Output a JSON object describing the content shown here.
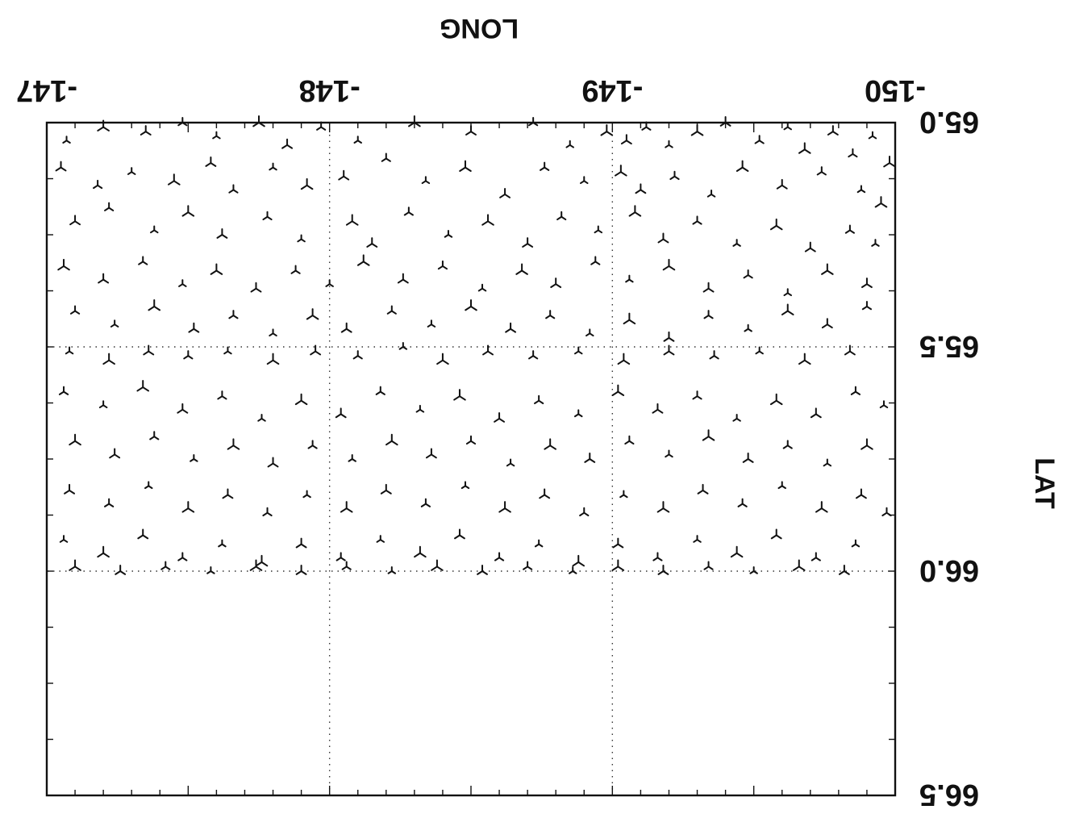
{
  "chart_data": {
    "type": "scatter",
    "marker": "tripod-symbol",
    "xlabel": "LONG",
    "ylabel": "LAT",
    "xlim": [
      -147,
      -150
    ],
    "ylim": [
      65.0,
      66.5
    ],
    "x_ticks": [
      {
        "value": -147,
        "label": "-147"
      },
      {
        "value": -148,
        "label": "-148"
      },
      {
        "value": -149,
        "label": "-149"
      },
      {
        "value": -150,
        "label": "-150"
      }
    ],
    "y_ticks": [
      {
        "value": 65.0,
        "label": "65.0"
      },
      {
        "value": 65.5,
        "label": "65.5"
      },
      {
        "value": 66.0,
        "label": "66.0"
      },
      {
        "value": 66.5,
        "label": "66.5"
      }
    ],
    "grid": true,
    "grid_style": "dotted",
    "orientation": "image rotated 180 degrees",
    "point_density_note": "points cover lat 65.0 to 66.0; lat 66.0 to 66.5 empty",
    "points": [
      {
        "x": -147.07,
        "y": 65.04
      },
      {
        "x": -147.2,
        "y": 65.01
      },
      {
        "x": -147.35,
        "y": 65.02
      },
      {
        "x": -147.48,
        "y": 65.0
      },
      {
        "x": -147.6,
        "y": 65.03
      },
      {
        "x": -147.75,
        "y": 65.0
      },
      {
        "x": -147.85,
        "y": 65.05
      },
      {
        "x": -147.97,
        "y": 65.01
      },
      {
        "x": -148.1,
        "y": 65.04
      },
      {
        "x": -148.3,
        "y": 65.0
      },
      {
        "x": -148.5,
        "y": 65.02
      },
      {
        "x": -148.72,
        "y": 65.0
      },
      {
        "x": -148.85,
        "y": 65.05
      },
      {
        "x": -148.98,
        "y": 65.02
      },
      {
        "x": -149.05,
        "y": 65.04
      },
      {
        "x": -149.12,
        "y": 65.01
      },
      {
        "x": -149.2,
        "y": 65.05
      },
      {
        "x": -149.3,
        "y": 65.02
      },
      {
        "x": -149.4,
        "y": 65.0
      },
      {
        "x": -149.52,
        "y": 65.04
      },
      {
        "x": -149.62,
        "y": 65.01
      },
      {
        "x": -149.68,
        "y": 65.06
      },
      {
        "x": -149.78,
        "y": 65.02
      },
      {
        "x": -149.85,
        "y": 65.07
      },
      {
        "x": -149.92,
        "y": 65.03
      },
      {
        "x": -149.98,
        "y": 65.09
      },
      {
        "x": -147.05,
        "y": 65.1
      },
      {
        "x": -147.18,
        "y": 65.14
      },
      {
        "x": -147.3,
        "y": 65.11
      },
      {
        "x": -147.45,
        "y": 65.13
      },
      {
        "x": -147.58,
        "y": 65.09
      },
      {
        "x": -147.66,
        "y": 65.15
      },
      {
        "x": -147.8,
        "y": 65.1
      },
      {
        "x": -147.92,
        "y": 65.14
      },
      {
        "x": -148.05,
        "y": 65.12
      },
      {
        "x": -148.2,
        "y": 65.08
      },
      {
        "x": -148.34,
        "y": 65.13
      },
      {
        "x": -148.48,
        "y": 65.1
      },
      {
        "x": -148.62,
        "y": 65.16
      },
      {
        "x": -148.76,
        "y": 65.1
      },
      {
        "x": -148.9,
        "y": 65.13
      },
      {
        "x": -149.03,
        "y": 65.11
      },
      {
        "x": -149.1,
        "y": 65.15
      },
      {
        "x": -149.22,
        "y": 65.12
      },
      {
        "x": -149.35,
        "y": 65.16
      },
      {
        "x": -149.46,
        "y": 65.1
      },
      {
        "x": -149.6,
        "y": 65.14
      },
      {
        "x": -149.74,
        "y": 65.11
      },
      {
        "x": -149.88,
        "y": 65.15
      },
      {
        "x": -149.95,
        "y": 65.18
      },
      {
        "x": -147.1,
        "y": 65.22
      },
      {
        "x": -147.22,
        "y": 65.19
      },
      {
        "x": -147.38,
        "y": 65.24
      },
      {
        "x": -147.5,
        "y": 65.2
      },
      {
        "x": -147.62,
        "y": 65.25
      },
      {
        "x": -147.78,
        "y": 65.21
      },
      {
        "x": -147.9,
        "y": 65.26
      },
      {
        "x": -148.08,
        "y": 65.22
      },
      {
        "x": -148.15,
        "y": 65.27
      },
      {
        "x": -148.28,
        "y": 65.2
      },
      {
        "x": -148.42,
        "y": 65.25
      },
      {
        "x": -148.56,
        "y": 65.22
      },
      {
        "x": -148.7,
        "y": 65.27
      },
      {
        "x": -148.82,
        "y": 65.21
      },
      {
        "x": -148.95,
        "y": 65.24
      },
      {
        "x": -149.08,
        "y": 65.2
      },
      {
        "x": -149.18,
        "y": 65.26
      },
      {
        "x": -149.3,
        "y": 65.22
      },
      {
        "x": -149.44,
        "y": 65.27
      },
      {
        "x": -149.58,
        "y": 65.23
      },
      {
        "x": -149.7,
        "y": 65.28
      },
      {
        "x": -149.84,
        "y": 65.24
      },
      {
        "x": -149.93,
        "y": 65.27
      },
      {
        "x": -147.06,
        "y": 65.32
      },
      {
        "x": -147.2,
        "y": 65.35
      },
      {
        "x": -147.34,
        "y": 65.31
      },
      {
        "x": -147.48,
        "y": 65.36
      },
      {
        "x": -147.6,
        "y": 65.33
      },
      {
        "x": -147.74,
        "y": 65.37
      },
      {
        "x": -147.88,
        "y": 65.33
      },
      {
        "x": -148.0,
        "y": 65.36
      },
      {
        "x": -148.12,
        "y": 65.31
      },
      {
        "x": -148.26,
        "y": 65.35
      },
      {
        "x": -148.4,
        "y": 65.32
      },
      {
        "x": -148.54,
        "y": 65.37
      },
      {
        "x": -148.68,
        "y": 65.33
      },
      {
        "x": -148.8,
        "y": 65.36
      },
      {
        "x": -148.94,
        "y": 65.31
      },
      {
        "x": -149.06,
        "y": 65.35
      },
      {
        "x": -149.2,
        "y": 65.32
      },
      {
        "x": -149.34,
        "y": 65.37
      },
      {
        "x": -149.48,
        "y": 65.34
      },
      {
        "x": -149.62,
        "y": 65.38
      },
      {
        "x": -149.76,
        "y": 65.33
      },
      {
        "x": -149.9,
        "y": 65.36
      },
      {
        "x": -147.1,
        "y": 65.42
      },
      {
        "x": -147.24,
        "y": 65.45
      },
      {
        "x": -147.38,
        "y": 65.41
      },
      {
        "x": -147.52,
        "y": 65.46
      },
      {
        "x": -147.66,
        "y": 65.43
      },
      {
        "x": -147.8,
        "y": 65.47
      },
      {
        "x": -147.94,
        "y": 65.43
      },
      {
        "x": -148.06,
        "y": 65.46
      },
      {
        "x": -148.22,
        "y": 65.42
      },
      {
        "x": -148.36,
        "y": 65.45
      },
      {
        "x": -148.5,
        "y": 65.41
      },
      {
        "x": -148.64,
        "y": 65.46
      },
      {
        "x": -148.78,
        "y": 65.43
      },
      {
        "x": -148.92,
        "y": 65.47
      },
      {
        "x": -149.06,
        "y": 65.44
      },
      {
        "x": -149.2,
        "y": 65.48
      },
      {
        "x": -149.34,
        "y": 65.43
      },
      {
        "x": -149.48,
        "y": 65.46
      },
      {
        "x": -149.62,
        "y": 65.42
      },
      {
        "x": -149.76,
        "y": 65.45
      },
      {
        "x": -149.9,
        "y": 65.41
      },
      {
        "x": -147.08,
        "y": 65.51
      },
      {
        "x": -147.22,
        "y": 65.53
      },
      {
        "x": -147.36,
        "y": 65.51
      },
      {
        "x": -147.5,
        "y": 65.52
      },
      {
        "x": -147.64,
        "y": 65.51
      },
      {
        "x": -147.8,
        "y": 65.53
      },
      {
        "x": -147.95,
        "y": 65.51
      },
      {
        "x": -148.1,
        "y": 65.52
      },
      {
        "x": -148.26,
        "y": 65.5
      },
      {
        "x": -148.4,
        "y": 65.53
      },
      {
        "x": -148.56,
        "y": 65.51
      },
      {
        "x": -148.72,
        "y": 65.52
      },
      {
        "x": -148.88,
        "y": 65.51
      },
      {
        "x": -149.04,
        "y": 65.53
      },
      {
        "x": -149.2,
        "y": 65.51
      },
      {
        "x": -149.36,
        "y": 65.52
      },
      {
        "x": -149.52,
        "y": 65.51
      },
      {
        "x": -149.68,
        "y": 65.53
      },
      {
        "x": -149.84,
        "y": 65.51
      },
      {
        "x": -147.06,
        "y": 65.6
      },
      {
        "x": -147.2,
        "y": 65.63
      },
      {
        "x": -147.34,
        "y": 65.59
      },
      {
        "x": -147.48,
        "y": 65.64
      },
      {
        "x": -147.62,
        "y": 65.61
      },
      {
        "x": -147.76,
        "y": 65.66
      },
      {
        "x": -147.9,
        "y": 65.62
      },
      {
        "x": -148.04,
        "y": 65.65
      },
      {
        "x": -148.18,
        "y": 65.6
      },
      {
        "x": -148.32,
        "y": 65.64
      },
      {
        "x": -148.46,
        "y": 65.61
      },
      {
        "x": -148.6,
        "y": 65.66
      },
      {
        "x": -148.74,
        "y": 65.62
      },
      {
        "x": -148.88,
        "y": 65.65
      },
      {
        "x": -149.02,
        "y": 65.6
      },
      {
        "x": -149.16,
        "y": 65.64
      },
      {
        "x": -149.3,
        "y": 65.61
      },
      {
        "x": -149.44,
        "y": 65.66
      },
      {
        "x": -149.58,
        "y": 65.62
      },
      {
        "x": -149.72,
        "y": 65.65
      },
      {
        "x": -149.86,
        "y": 65.6
      },
      {
        "x": -149.96,
        "y": 65.63
      },
      {
        "x": -147.1,
        "y": 65.71
      },
      {
        "x": -147.24,
        "y": 65.74
      },
      {
        "x": -147.38,
        "y": 65.7
      },
      {
        "x": -147.52,
        "y": 65.75
      },
      {
        "x": -147.66,
        "y": 65.72
      },
      {
        "x": -147.8,
        "y": 65.76
      },
      {
        "x": -147.94,
        "y": 65.72
      },
      {
        "x": -148.08,
        "y": 65.75
      },
      {
        "x": -148.22,
        "y": 65.71
      },
      {
        "x": -148.36,
        "y": 65.74
      },
      {
        "x": -148.5,
        "y": 65.71
      },
      {
        "x": -148.64,
        "y": 65.76
      },
      {
        "x": -148.78,
        "y": 65.72
      },
      {
        "x": -148.92,
        "y": 65.75
      },
      {
        "x": -149.06,
        "y": 65.71
      },
      {
        "x": -149.2,
        "y": 65.74
      },
      {
        "x": -149.34,
        "y": 65.7
      },
      {
        "x": -149.48,
        "y": 65.75
      },
      {
        "x": -149.62,
        "y": 65.72
      },
      {
        "x": -149.76,
        "y": 65.76
      },
      {
        "x": -149.9,
        "y": 65.72
      },
      {
        "x": -147.08,
        "y": 65.82
      },
      {
        "x": -147.22,
        "y": 65.85
      },
      {
        "x": -147.36,
        "y": 65.81
      },
      {
        "x": -147.5,
        "y": 65.86
      },
      {
        "x": -147.64,
        "y": 65.83
      },
      {
        "x": -147.78,
        "y": 65.87
      },
      {
        "x": -147.92,
        "y": 65.83
      },
      {
        "x": -148.06,
        "y": 65.86
      },
      {
        "x": -148.2,
        "y": 65.82
      },
      {
        "x": -148.34,
        "y": 65.85
      },
      {
        "x": -148.48,
        "y": 65.81
      },
      {
        "x": -148.62,
        "y": 65.86
      },
      {
        "x": -148.76,
        "y": 65.83
      },
      {
        "x": -148.9,
        "y": 65.87
      },
      {
        "x": -149.04,
        "y": 65.83
      },
      {
        "x": -149.18,
        "y": 65.86
      },
      {
        "x": -149.32,
        "y": 65.82
      },
      {
        "x": -149.46,
        "y": 65.85
      },
      {
        "x": -149.6,
        "y": 65.81
      },
      {
        "x": -149.74,
        "y": 65.86
      },
      {
        "x": -149.88,
        "y": 65.83
      },
      {
        "x": -149.97,
        "y": 65.87
      },
      {
        "x": -147.06,
        "y": 65.93
      },
      {
        "x": -147.2,
        "y": 65.96
      },
      {
        "x": -147.34,
        "y": 65.92
      },
      {
        "x": -147.48,
        "y": 65.97
      },
      {
        "x": -147.62,
        "y": 65.94
      },
      {
        "x": -147.76,
        "y": 65.98
      },
      {
        "x": -147.9,
        "y": 65.94
      },
      {
        "x": -148.04,
        "y": 65.97
      },
      {
        "x": -148.18,
        "y": 65.93
      },
      {
        "x": -148.32,
        "y": 65.96
      },
      {
        "x": -148.46,
        "y": 65.92
      },
      {
        "x": -148.6,
        "y": 65.97
      },
      {
        "x": -148.74,
        "y": 65.94
      },
      {
        "x": -148.88,
        "y": 65.98
      },
      {
        "x": -149.02,
        "y": 65.94
      },
      {
        "x": -149.16,
        "y": 65.97
      },
      {
        "x": -149.3,
        "y": 65.93
      },
      {
        "x": -149.44,
        "y": 65.96
      },
      {
        "x": -149.58,
        "y": 65.92
      },
      {
        "x": -149.72,
        "y": 65.97
      },
      {
        "x": -149.86,
        "y": 65.94
      },
      {
        "x": -147.1,
        "y": 65.99
      },
      {
        "x": -147.26,
        "y": 66.0
      },
      {
        "x": -147.42,
        "y": 65.99
      },
      {
        "x": -147.58,
        "y": 66.0
      },
      {
        "x": -147.74,
        "y": 65.99
      },
      {
        "x": -147.9,
        "y": 66.0
      },
      {
        "x": -148.06,
        "y": 65.99
      },
      {
        "x": -148.22,
        "y": 66.0
      },
      {
        "x": -148.38,
        "y": 65.99
      },
      {
        "x": -148.54,
        "y": 66.0
      },
      {
        "x": -148.7,
        "y": 65.99
      },
      {
        "x": -148.86,
        "y": 66.0
      },
      {
        "x": -149.02,
        "y": 65.99
      },
      {
        "x": -149.18,
        "y": 66.0
      },
      {
        "x": -149.34,
        "y": 65.99
      },
      {
        "x": -149.5,
        "y": 66.0
      },
      {
        "x": -149.66,
        "y": 65.99
      },
      {
        "x": -149.82,
        "y": 66.0
      }
    ]
  }
}
